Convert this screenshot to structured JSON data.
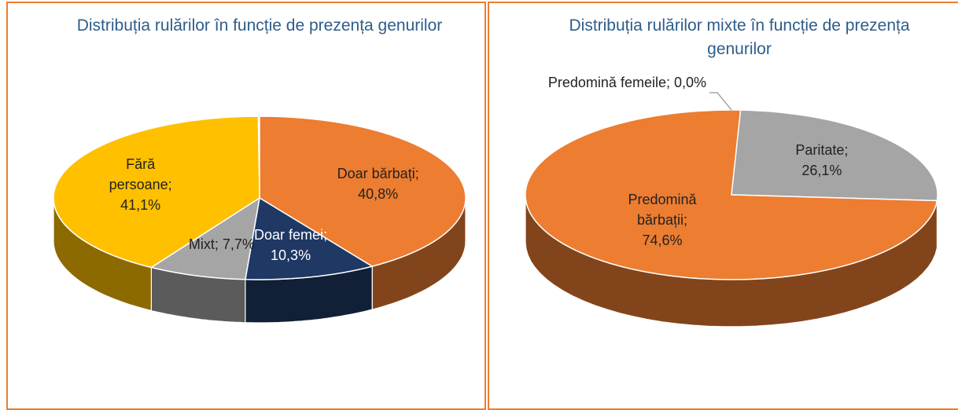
{
  "chart_data": [
    {
      "type": "pie",
      "title": "Distribuția rulărilor în funcție de prezența genurilor",
      "values": [
        40.8,
        10.3,
        7.7,
        41.1
      ],
      "value_labels": [
        "Doar bărbați; 40,8%",
        "Doar femei; 10,3%",
        "Mixt; 7,7%",
        "Fără persoane; 41,1%"
      ],
      "colors": [
        "#ed7d31",
        "#1f3864",
        "#a5a5a5",
        "#ffc000"
      ]
    },
    {
      "type": "pie",
      "title": "Distribuția rulărilor mixte în funcție de prezența genurilor",
      "values": [
        0.0,
        26.1,
        74.6
      ],
      "value_labels": [
        "Predomină femeile; 0,0%",
        "Paritate; 26,1%",
        "Predomină bărbații; 74,6%"
      ],
      "colors": [
        "#5b9bd5",
        "#a5a5a5",
        "#ed7d31"
      ]
    }
  ]
}
